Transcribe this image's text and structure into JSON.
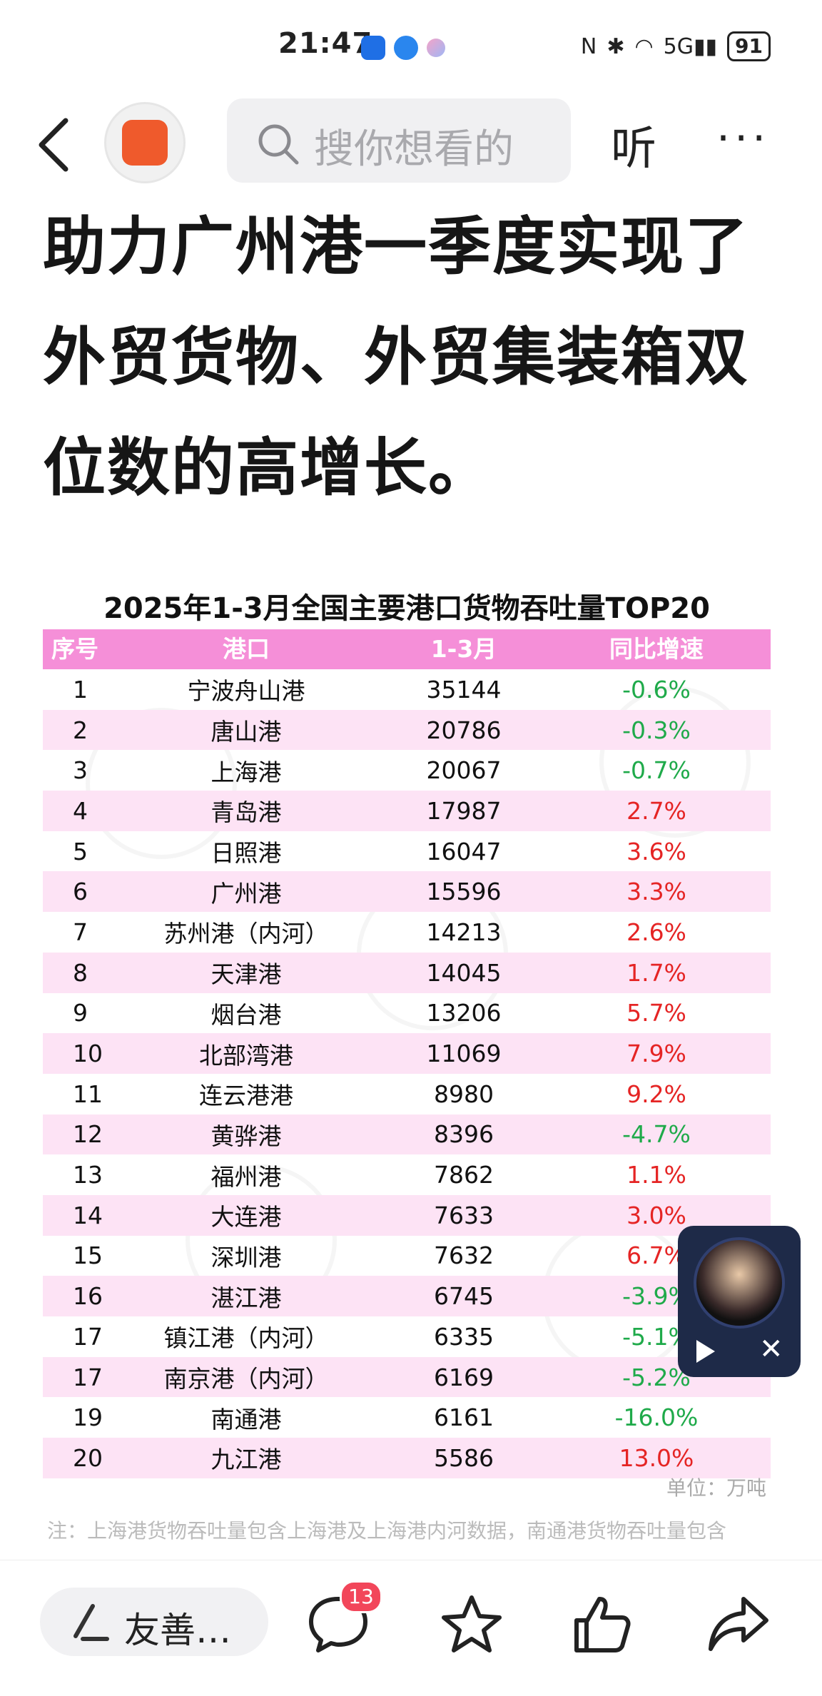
{
  "status_bar": {
    "time": "21:47",
    "battery": "91"
  },
  "topbar": {
    "search_placeholder": "搜你想看的",
    "listen_label": "听",
    "more_label": "···"
  },
  "headline": "助力广州港一季度实现了外贸货物、外贸集装箱双位数的高增长。",
  "table": {
    "title": "2025年1-3月全国主要港口货物吞吐量TOP20",
    "headers": [
      "序号",
      "港口",
      "1-3月",
      "同比增速"
    ],
    "rows": [
      [
        "1",
        "宁波舟山港",
        "35144",
        "-0.6%"
      ],
      [
        "2",
        "唐山港",
        "20786",
        "-0.3%"
      ],
      [
        "3",
        "上海港",
        "20067",
        "-0.7%"
      ],
      [
        "4",
        "青岛港",
        "17987",
        "2.7%"
      ],
      [
        "5",
        "日照港",
        "16047",
        "3.6%"
      ],
      [
        "6",
        "广州港",
        "15596",
        "3.3%"
      ],
      [
        "7",
        "苏州港（内河）",
        "14213",
        "2.6%"
      ],
      [
        "8",
        "天津港",
        "14045",
        "1.7%"
      ],
      [
        "9",
        "烟台港",
        "13206",
        "5.7%"
      ],
      [
        "10",
        "北部湾港",
        "11069",
        "7.9%"
      ],
      [
        "11",
        "连云港港",
        "8980",
        "9.2%"
      ],
      [
        "12",
        "黄骅港",
        "8396",
        "-4.7%"
      ],
      [
        "13",
        "福州港",
        "7862",
        "1.1%"
      ],
      [
        "14",
        "大连港",
        "7633",
        "3.0%"
      ],
      [
        "15",
        "深圳港",
        "7632",
        "6.7%"
      ],
      [
        "16",
        "湛江港",
        "6745",
        "-3.9%"
      ],
      [
        "17",
        "镇江港（内河）",
        "6335",
        "-5.1%"
      ],
      [
        "17",
        "南京港（内河）",
        "6169",
        "-5.2%"
      ],
      [
        "19",
        "南通港",
        "6161",
        "-16.0%"
      ],
      [
        "20",
        "九江港",
        "5586",
        "13.0%"
      ]
    ],
    "unit": "单位：万吨",
    "note": "注：上海港货物吞吐量包含上海港及上海港内河数据，南通港货物吞吐量包含"
  },
  "bottombar": {
    "comment_placeholder": "友善…",
    "comment_count": "13"
  },
  "colors": {
    "positive": "#e52424",
    "negative": "#1faa4a",
    "header_pink": "#f58fd8",
    "row_pink": "#fde3f5"
  }
}
